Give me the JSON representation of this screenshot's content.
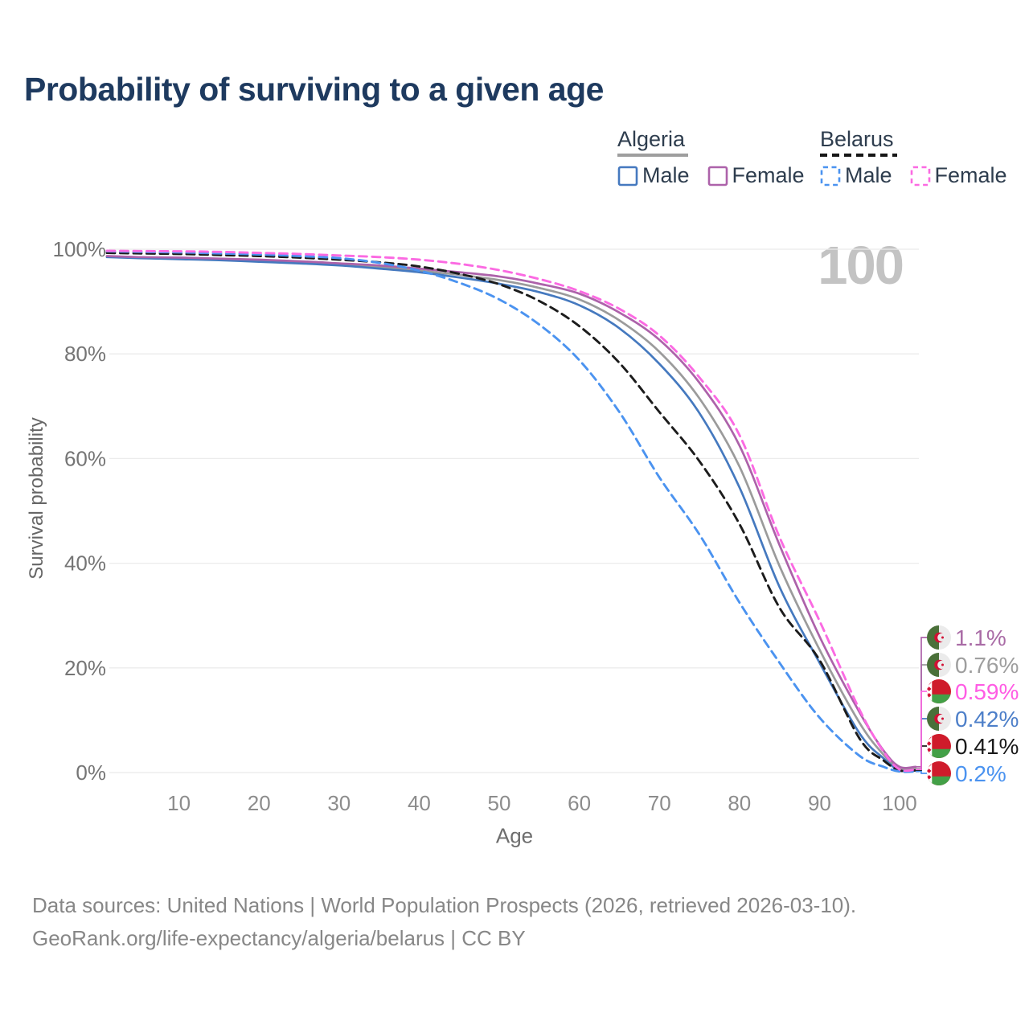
{
  "title": "Probability of surviving to a given age",
  "watermark": "100",
  "legend": {
    "groups": [
      {
        "label": "Algeria",
        "underline_style": "solid",
        "underline_color": "#9e9e9e",
        "items": [
          {
            "label": "Male",
            "color": "#4579bf",
            "dash": false
          },
          {
            "label": "Female",
            "color": "#ad62aa",
            "dash": false
          }
        ]
      },
      {
        "label": "Belarus",
        "underline_style": "dashed",
        "underline_color": "#161616",
        "items": [
          {
            "label": "Male",
            "color": "#4b93f0",
            "dash": true
          },
          {
            "label": "Female",
            "color": "#fb6ae2",
            "dash": true
          }
        ]
      }
    ]
  },
  "chart_data": {
    "type": "line",
    "title": "Probability of surviving to a given age",
    "xlabel": "Age",
    "ylabel": "Survival probability",
    "xlim": [
      0,
      102
    ],
    "ylim": [
      0,
      100
    ],
    "grid": "horizontal",
    "hover_age_indicator": "100",
    "x_ticks": [
      "10",
      "20",
      "30",
      "40",
      "50",
      "60",
      "70",
      "80",
      "90",
      "100"
    ],
    "y_ticks": [
      "0%",
      "20%",
      "40%",
      "60%",
      "80%",
      "100%"
    ],
    "ages": [
      1,
      5,
      10,
      15,
      20,
      25,
      30,
      35,
      40,
      45,
      50,
      55,
      60,
      65,
      70,
      75,
      80,
      85,
      90,
      95,
      98,
      100
    ],
    "series": [
      {
        "name": "Algeria — Total",
        "country": "algeria",
        "sex": "both",
        "color": "#9b9b9b",
        "label_color": "#9e9e9e",
        "dash": false,
        "end_label": "0.76%",
        "end_value": 0.76,
        "row": 1,
        "values": [
          98.6,
          98.4,
          98.2,
          98.0,
          97.8,
          97.5,
          97.1,
          96.6,
          95.9,
          95.1,
          94.1,
          92.6,
          90.4,
          86.4,
          80.4,
          71.5,
          58.5,
          39.5,
          23.5,
          9.5,
          3.4,
          0.76
        ]
      },
      {
        "name": "Algeria — Male",
        "country": "algeria",
        "sex": "male",
        "color": "#4579bf",
        "label_color": "#4d7fc9",
        "dash": false,
        "end_label": "0.42%",
        "end_value": 0.42,
        "row": 3,
        "values": [
          98.5,
          98.3,
          98.1,
          97.9,
          97.6,
          97.3,
          96.9,
          96.3,
          95.6,
          94.6,
          93.4,
          91.8,
          89.3,
          84.9,
          78.1,
          68.7,
          54.5,
          35.5,
          21.0,
          7.5,
          2.7,
          0.42
        ]
      },
      {
        "name": "Algeria — Female",
        "country": "algeria",
        "sex": "female",
        "color": "#ad62aa",
        "label_color": "#a96ba6",
        "dash": false,
        "end_label": "1.1%",
        "end_value": 1.1,
        "row": 0,
        "values": [
          98.7,
          98.5,
          98.4,
          98.2,
          98.0,
          97.7,
          97.3,
          96.9,
          96.3,
          95.6,
          94.8,
          93.4,
          91.5,
          87.9,
          82.7,
          74.5,
          62.5,
          43.5,
          26.0,
          11.5,
          4.2,
          1.1
        ]
      },
      {
        "name": "Belarus — Total",
        "country": "belarus",
        "sex": "both",
        "color": "#1c1c1c",
        "label_color": "#1a1a1a",
        "dash": true,
        "end_label": "0.41%",
        "end_value": 0.41,
        "row": 4,
        "values": [
          99.3,
          99.2,
          99.1,
          98.9,
          98.7,
          98.4,
          98.0,
          97.5,
          96.7,
          95.3,
          93.3,
          90.1,
          85.3,
          78.3,
          68.9,
          59.5,
          47.5,
          31.5,
          21.5,
          6.5,
          2.3,
          0.41
        ]
      },
      {
        "name": "Belarus — Male",
        "country": "belarus",
        "sex": "male",
        "color": "#4b93f0",
        "label_color": "#4b93f0",
        "dash": true,
        "end_label": "0.2%",
        "end_value": 0.2,
        "row": 5,
        "values": [
          99.6,
          99.5,
          99.4,
          99.2,
          99.0,
          98.7,
          98.3,
          97.4,
          95.9,
          93.6,
          90.4,
          85.6,
          78.8,
          68.9,
          56.4,
          45.5,
          32.5,
          21.0,
          10.5,
          3.2,
          1.1,
          0.2
        ]
      },
      {
        "name": "Belarus — Female",
        "country": "belarus",
        "sex": "female",
        "color": "#fb6ae2",
        "label_color": "#ff5ce4",
        "dash": true,
        "end_label": "0.59%",
        "end_value": 0.59,
        "row": 2,
        "values": [
          99.7,
          99.65,
          99.6,
          99.5,
          99.3,
          99.1,
          98.8,
          98.5,
          98.0,
          97.2,
          96.0,
          94.3,
          92.0,
          88.6,
          83.5,
          75.5,
          64.5,
          45.0,
          29.0,
          12.0,
          4.0,
          0.59
        ]
      }
    ]
  },
  "footer": {
    "line1": "Data sources: United Nations | World Population Prospects (2026, retrieved 2026-03-10).",
    "line2": "GeoRank.org/life-expectancy/algeria/belarus | CC BY"
  }
}
